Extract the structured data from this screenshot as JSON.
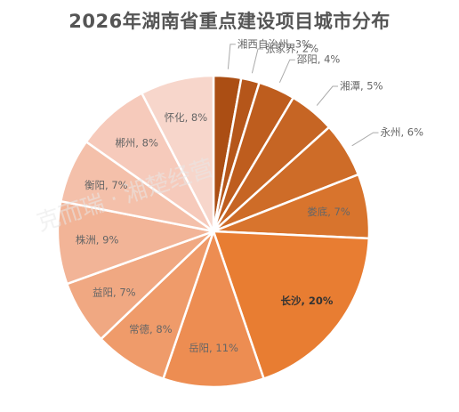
{
  "chart_data": {
    "type": "pie",
    "title": "2026年湖南省重点建设项目城市分布",
    "slices": [
      {
        "label": "湘西自治州, 3%",
        "value": 3,
        "color": "#ab4e14"
      },
      {
        "label": "张家界, 2%",
        "value": 2,
        "color": "#b5561a"
      },
      {
        "label": "邵阳, 4%",
        "value": 4,
        "color": "#be5d1e"
      },
      {
        "label": "湘潭, 5%",
        "value": 5,
        "color": "#c66524"
      },
      {
        "label": "永州, 6%",
        "value": 6,
        "color": "#ce6c28"
      },
      {
        "label": "娄底, 7%",
        "value": 7,
        "color": "#d8742d"
      },
      {
        "label": "长沙, 20%",
        "value": 20,
        "color": "#e87d32",
        "bold": true
      },
      {
        "label": "岳阳, 11%",
        "value": 11,
        "color": "#ed8d52"
      },
      {
        "label": "常德, 8%",
        "value": 8,
        "color": "#ef9b6a"
      },
      {
        "label": "益阳, 7%",
        "value": 7,
        "color": "#f0a882"
      },
      {
        "label": "株洲, 9%",
        "value": 9,
        "color": "#f2b497"
      },
      {
        "label": "衡阳, 7%",
        "value": 7,
        "color": "#f4c0aa"
      },
      {
        "label": "郴州, 8%",
        "value": 8,
        "color": "#f6cabb"
      },
      {
        "label": "怀化, 8%",
        "value": 8,
        "color": "#f7d6cb"
      }
    ]
  },
  "watermark_text": "克而瑞 · 湘楚经营"
}
